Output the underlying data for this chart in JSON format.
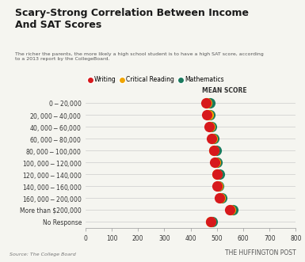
{
  "title": "Scary-Strong Correlation Between Income\nAnd SAT Scores",
  "subtitle": "The richer the parents, the more likely a high school student is to have a high SAT score, according\nto a 2013 report by the CollegeBoard.",
  "categories": [
    "$0-$20,000",
    "$20,000-$40,000",
    "$40,000-$60,000",
    "$60,000-$80,000",
    "$80,000-$100,000",
    "$100,000-$120,000",
    "$120,000-$140,000",
    "$140,000-$160,000",
    "$160,000-$200,000",
    "More than $200,000",
    "No Response"
  ],
  "writing": [
    457,
    462,
    471,
    479,
    488,
    492,
    502,
    501,
    510,
    549,
    475
  ],
  "critical_reading": [
    462,
    468,
    474,
    481,
    489,
    494,
    502,
    503,
    512,
    551,
    477
  ],
  "mathematics": [
    472,
    474,
    480,
    487,
    496,
    501,
    511,
    508,
    519,
    562,
    482
  ],
  "writing_color": "#d7191c",
  "critical_reading_color": "#f0a500",
  "mathematics_color": "#1a7a5e",
  "mean_score_label": "MEAN SCORE",
  "xlim": [
    0,
    800
  ],
  "xticks": [
    0,
    100,
    200,
    300,
    400,
    500,
    600,
    700,
    800
  ],
  "source_text": "Source: The College Board",
  "brand_text": "THE HUFFINGTON POST",
  "background_color": "#f5f5f0",
  "dot_size": 90,
  "legend_labels": [
    "Writing",
    "Critical Reading",
    "Mathematics"
  ]
}
